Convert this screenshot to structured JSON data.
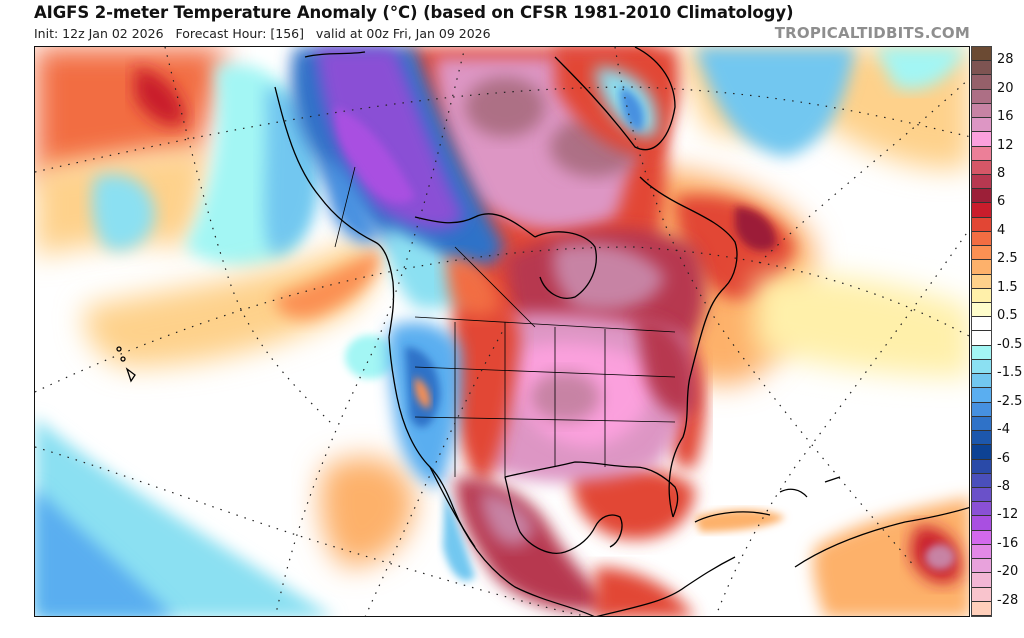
{
  "header": {
    "title": "AIGFS 2-meter Temperature Anomaly (°C) (based on CFSR 1981-2010 Climatology)",
    "subtitle": "Init: 12z Jan 02 2026   Forecast Hour: [156]   valid at 00z Fri, Jan 09 2026",
    "brand": "TROPICALTIDBITS.COM"
  },
  "colorbar": {
    "units": "°C",
    "bins": [
      {
        "color": "#6b4a33"
      },
      {
        "color": "#7e5452"
      },
      {
        "color": "#95606a"
      },
      {
        "color": "#ad6f85"
      },
      {
        "color": "#c783a4"
      },
      {
        "color": "#dd96c4"
      },
      {
        "color": "#fba0dd"
      },
      {
        "color": "#ec7f98"
      },
      {
        "color": "#d55767"
      },
      {
        "color": "#b73850"
      },
      {
        "color": "#9c1f38"
      },
      {
        "color": "#c91d2c"
      },
      {
        "color": "#e24634"
      },
      {
        "color": "#f26d42"
      },
      {
        "color": "#fb9053"
      },
      {
        "color": "#fdb16b"
      },
      {
        "color": "#fed18b"
      },
      {
        "color": "#fff0aa"
      },
      {
        "color": "#fffdcb"
      },
      {
        "color": "#ffffff"
      },
      {
        "color": "#ffffff"
      },
      {
        "color": "#a3f6f4"
      },
      {
        "color": "#8be0f2"
      },
      {
        "color": "#72c7f0"
      },
      {
        "color": "#5aaef0"
      },
      {
        "color": "#4690e0"
      },
      {
        "color": "#2f72c8"
      },
      {
        "color": "#1d57ac"
      },
      {
        "color": "#0d4294"
      },
      {
        "color": "#2a4aa8"
      },
      {
        "color": "#4a4fbb"
      },
      {
        "color": "#6a51c9"
      },
      {
        "color": "#8a50d5"
      },
      {
        "color": "#a94fe1"
      },
      {
        "color": "#d269ec"
      },
      {
        "color": "#e288e6"
      },
      {
        "color": "#e8a2dc"
      },
      {
        "color": "#f2b6d5"
      },
      {
        "color": "#f9c4cd"
      },
      {
        "color": "#ffcfbb"
      }
    ],
    "labels": [
      "28",
      "20",
      "16",
      "12",
      "8",
      "6",
      "4",
      "2.5",
      "1.5",
      "0.5",
      "-0.5",
      "-1.5",
      "-2.5",
      "-4",
      "-6",
      "-8",
      "-12",
      "-16",
      "-20",
      "-28"
    ]
  },
  "map": {
    "region": "North America and surrounding oceans",
    "regions_shown": [
      "Alaska",
      "Canada",
      "Greenland",
      "United States",
      "Mexico",
      "Central America",
      "Caribbean",
      "South America (north)",
      "Hawaii",
      "North Pacific",
      "North Atlantic"
    ],
    "highlights": {
      "cold_anomaly": "Alaska and western Canada (purple to blue, below -8)",
      "warm_anomaly": "Central and eastern US, eastern Canada, Hudson Bay (pink to magenta, 8 to 16+)",
      "west_us": "Mixed cool anomalies over the western US"
    }
  }
}
